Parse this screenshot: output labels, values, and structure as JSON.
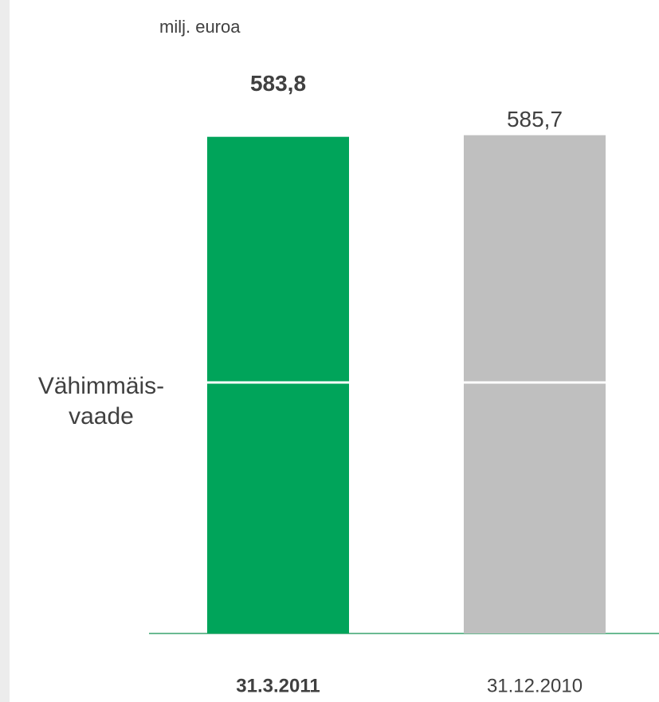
{
  "chart_data": {
    "type": "stacked_bar",
    "unit_label": "milj. euroa",
    "categories": [
      "31.3.2011",
      "31.12.2010"
    ],
    "colors": [
      "#00a45a",
      "#bfbfbf"
    ],
    "series": [
      {
        "name": "Vähimmäis-\nvaade",
        "values": [
          295,
          295
        ]
      },
      {
        "values": [
          288.8,
          290.7
        ]
      }
    ],
    "totals": [
      583.8,
      585.7
    ],
    "total_labels": [
      "583,8",
      "585,7"
    ],
    "ylim": [
      0,
      600
    ]
  }
}
